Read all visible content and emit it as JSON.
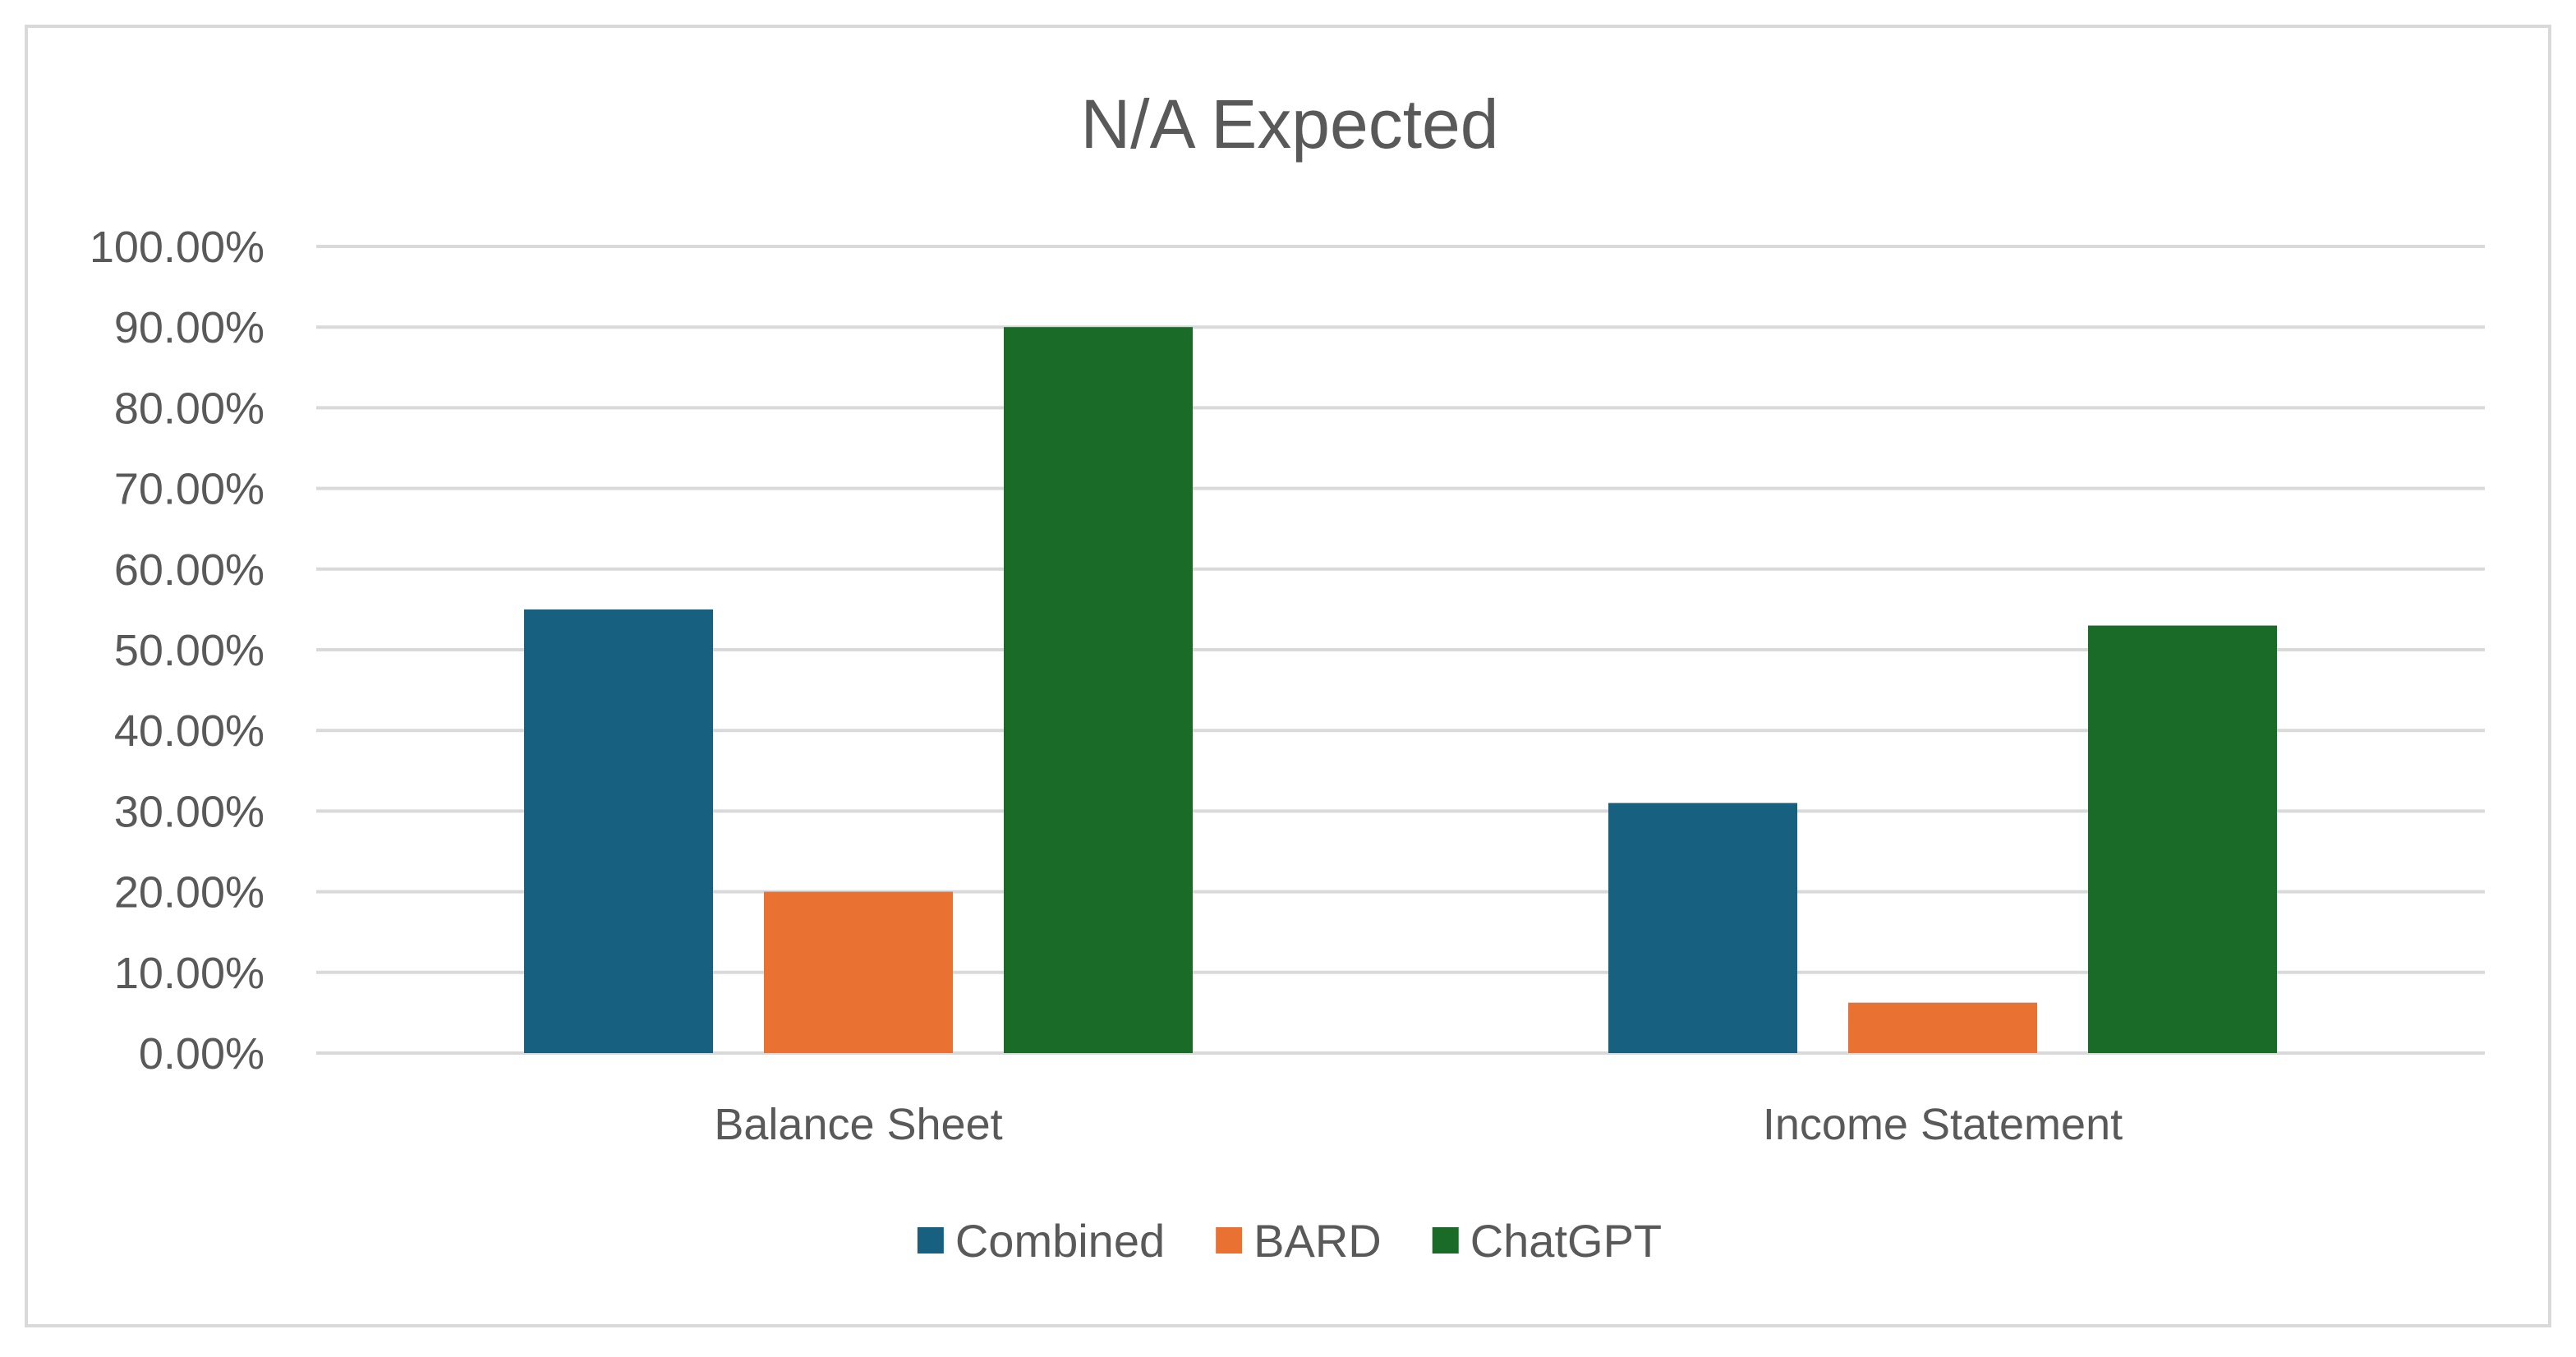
{
  "chart_data": {
    "type": "bar",
    "title": "N/A Expected",
    "categories": [
      "Balance Sheet",
      "Income Statement"
    ],
    "series": [
      {
        "name": "Combined",
        "color": "#17607f",
        "values": [
          55.0,
          31.0
        ]
      },
      {
        "name": "BARD",
        "color": "#e97132",
        "values": [
          20.0,
          6.25
        ]
      },
      {
        "name": "ChatGPT",
        "color": "#1a6b27",
        "values": [
          90.0,
          53.0
        ]
      }
    ],
    "yticks": [
      "0.00%",
      "10.00%",
      "20.00%",
      "30.00%",
      "40.00%",
      "50.00%",
      "60.00%",
      "70.00%",
      "80.00%",
      "90.00%",
      "100.00%"
    ],
    "ylim": [
      0,
      100
    ],
    "grid": true,
    "legend": "bottom-center",
    "gridColor": "#d9d9d9"
  }
}
